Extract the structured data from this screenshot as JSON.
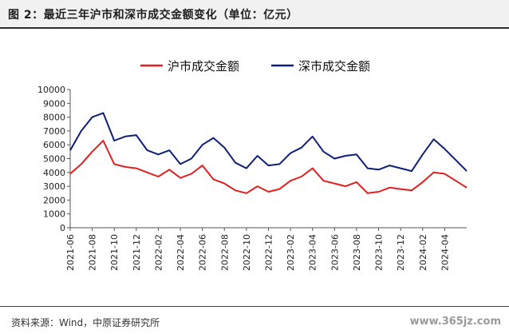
{
  "header": {
    "title": "图 2：最近三年沪市和深市成交金额变化（单位：亿元）"
  },
  "footer": {
    "source": "资料来源：Wind，中原证券研究所",
    "watermark": "www.365jz.com"
  },
  "colors": {
    "sh": "#e02020",
    "sz": "#0e1f78"
  },
  "chart_data": {
    "type": "line",
    "title": "",
    "xlabel": "",
    "ylabel": "",
    "ylim": [
      0,
      10000
    ],
    "yticks": [
      0,
      1000,
      2000,
      3000,
      4000,
      5000,
      6000,
      7000,
      8000,
      9000,
      10000
    ],
    "xticks": [
      "2021-06",
      "2021-08",
      "2021-10",
      "2021-12",
      "2022-02",
      "2022-04",
      "2022-06",
      "2022-08",
      "2022-10",
      "2022-12",
      "2023-02",
      "2023-04",
      "2023-06",
      "2023-08",
      "2023-10",
      "2023-12",
      "2024-02",
      "2024-04"
    ],
    "xrange": [
      "2021-06",
      "2024-06"
    ],
    "grid": false,
    "legend": "top-center",
    "series": [
      {
        "name": "沪市成交金额",
        "color": "#e02020",
        "x": [
          "2021-06",
          "2021-07",
          "2021-08",
          "2021-09",
          "2021-10",
          "2021-11",
          "2021-12",
          "2022-01",
          "2022-02",
          "2022-03",
          "2022-04",
          "2022-05",
          "2022-06",
          "2022-07",
          "2022-08",
          "2022-09",
          "2022-10",
          "2022-11",
          "2022-12",
          "2023-01",
          "2023-02",
          "2023-03",
          "2023-04",
          "2023-05",
          "2023-06",
          "2023-07",
          "2023-08",
          "2023-09",
          "2023-10",
          "2023-11",
          "2023-12",
          "2024-01",
          "2024-02",
          "2024-03",
          "2024-04",
          "2024-05",
          "2024-06"
        ],
        "values": [
          3900,
          4600,
          5500,
          6300,
          4600,
          4400,
          4300,
          4000,
          3700,
          4200,
          3600,
          3900,
          4500,
          3500,
          3200,
          2700,
          2500,
          3000,
          2600,
          2800,
          3400,
          3700,
          4300,
          3400,
          3200,
          3000,
          3300,
          2500,
          2600,
          2900,
          2800,
          2700,
          3300,
          4000,
          3900,
          3400,
          2900
        ]
      },
      {
        "name": "深市成交金额",
        "color": "#0e1f78",
        "x": [
          "2021-06",
          "2021-07",
          "2021-08",
          "2021-09",
          "2021-10",
          "2021-11",
          "2021-12",
          "2022-01",
          "2022-02",
          "2022-03",
          "2022-04",
          "2022-05",
          "2022-06",
          "2022-07",
          "2022-08",
          "2022-09",
          "2022-10",
          "2022-11",
          "2022-12",
          "2023-01",
          "2023-02",
          "2023-03",
          "2023-04",
          "2023-05",
          "2023-06",
          "2023-07",
          "2023-08",
          "2023-09",
          "2023-10",
          "2023-11",
          "2023-12",
          "2024-01",
          "2024-02",
          "2024-03",
          "2024-04",
          "2024-05",
          "2024-06"
        ],
        "values": [
          5600,
          7000,
          8000,
          8300,
          6300,
          6600,
          6700,
          5600,
          5300,
          5600,
          4600,
          5000,
          6000,
          6500,
          5800,
          4700,
          4300,
          5200,
          4500,
          4600,
          5400,
          5800,
          6600,
          5500,
          5000,
          5200,
          5300,
          4300,
          4200,
          4500,
          4300,
          4100,
          5300,
          6400,
          5700,
          4900,
          4100
        ]
      }
    ]
  }
}
